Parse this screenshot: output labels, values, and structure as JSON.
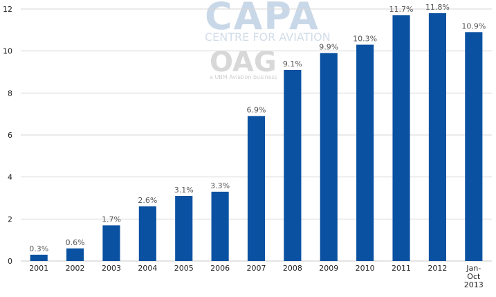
{
  "watermark": {
    "capa": "CAPA",
    "centre": "CENTRE FOR AVIATION",
    "oag": "OAG",
    "oag_sub": "a UBM Aviation business"
  },
  "chart_data": {
    "type": "bar",
    "categories": [
      "2001",
      "2002",
      "2003",
      "2004",
      "2005",
      "2006",
      "2007",
      "2008",
      "2009",
      "2010",
      "2011",
      "2012",
      [
        "Jan-",
        "Oct",
        "2013"
      ]
    ],
    "values": [
      0.3,
      0.6,
      1.7,
      2.6,
      3.1,
      3.3,
      6.9,
      9.1,
      9.9,
      10.3,
      11.7,
      11.8,
      10.9
    ],
    "data_labels": [
      "0.3%",
      "0.6%",
      "1.7%",
      "2.6%",
      "3.1%",
      "3.3%",
      "6.9%",
      "9.1%",
      "9.9%",
      "10.3%",
      "11.7%",
      "11.8%",
      "10.9%"
    ],
    "yticks": [
      0,
      2,
      4,
      6,
      8,
      10,
      12
    ],
    "ylim": [
      0,
      12
    ],
    "grid": true,
    "colors": {
      "bar": "#0a51a1"
    }
  }
}
